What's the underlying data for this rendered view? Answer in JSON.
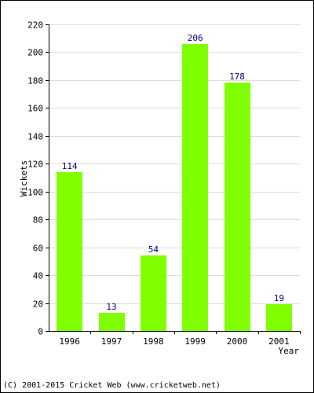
{
  "chart_data": {
    "type": "bar",
    "categories": [
      "1996",
      "1997",
      "1998",
      "1999",
      "2000",
      "2001"
    ],
    "values": [
      114,
      13,
      54,
      206,
      178,
      19
    ],
    "title": "",
    "xlabel": "Year",
    "ylabel": "Wickets",
    "ylim": [
      0,
      220
    ],
    "yticks": [
      0,
      20,
      40,
      60,
      80,
      100,
      120,
      140,
      160,
      180,
      200,
      220
    ],
    "grid": true,
    "data_labels": true,
    "bar_color": "#80ff00",
    "label_color": "#000080",
    "grid_color": "#dcdcdc"
  },
  "footer": {
    "copyright": "(C) 2001-2015 Cricket Web (www.cricketweb.net)"
  }
}
